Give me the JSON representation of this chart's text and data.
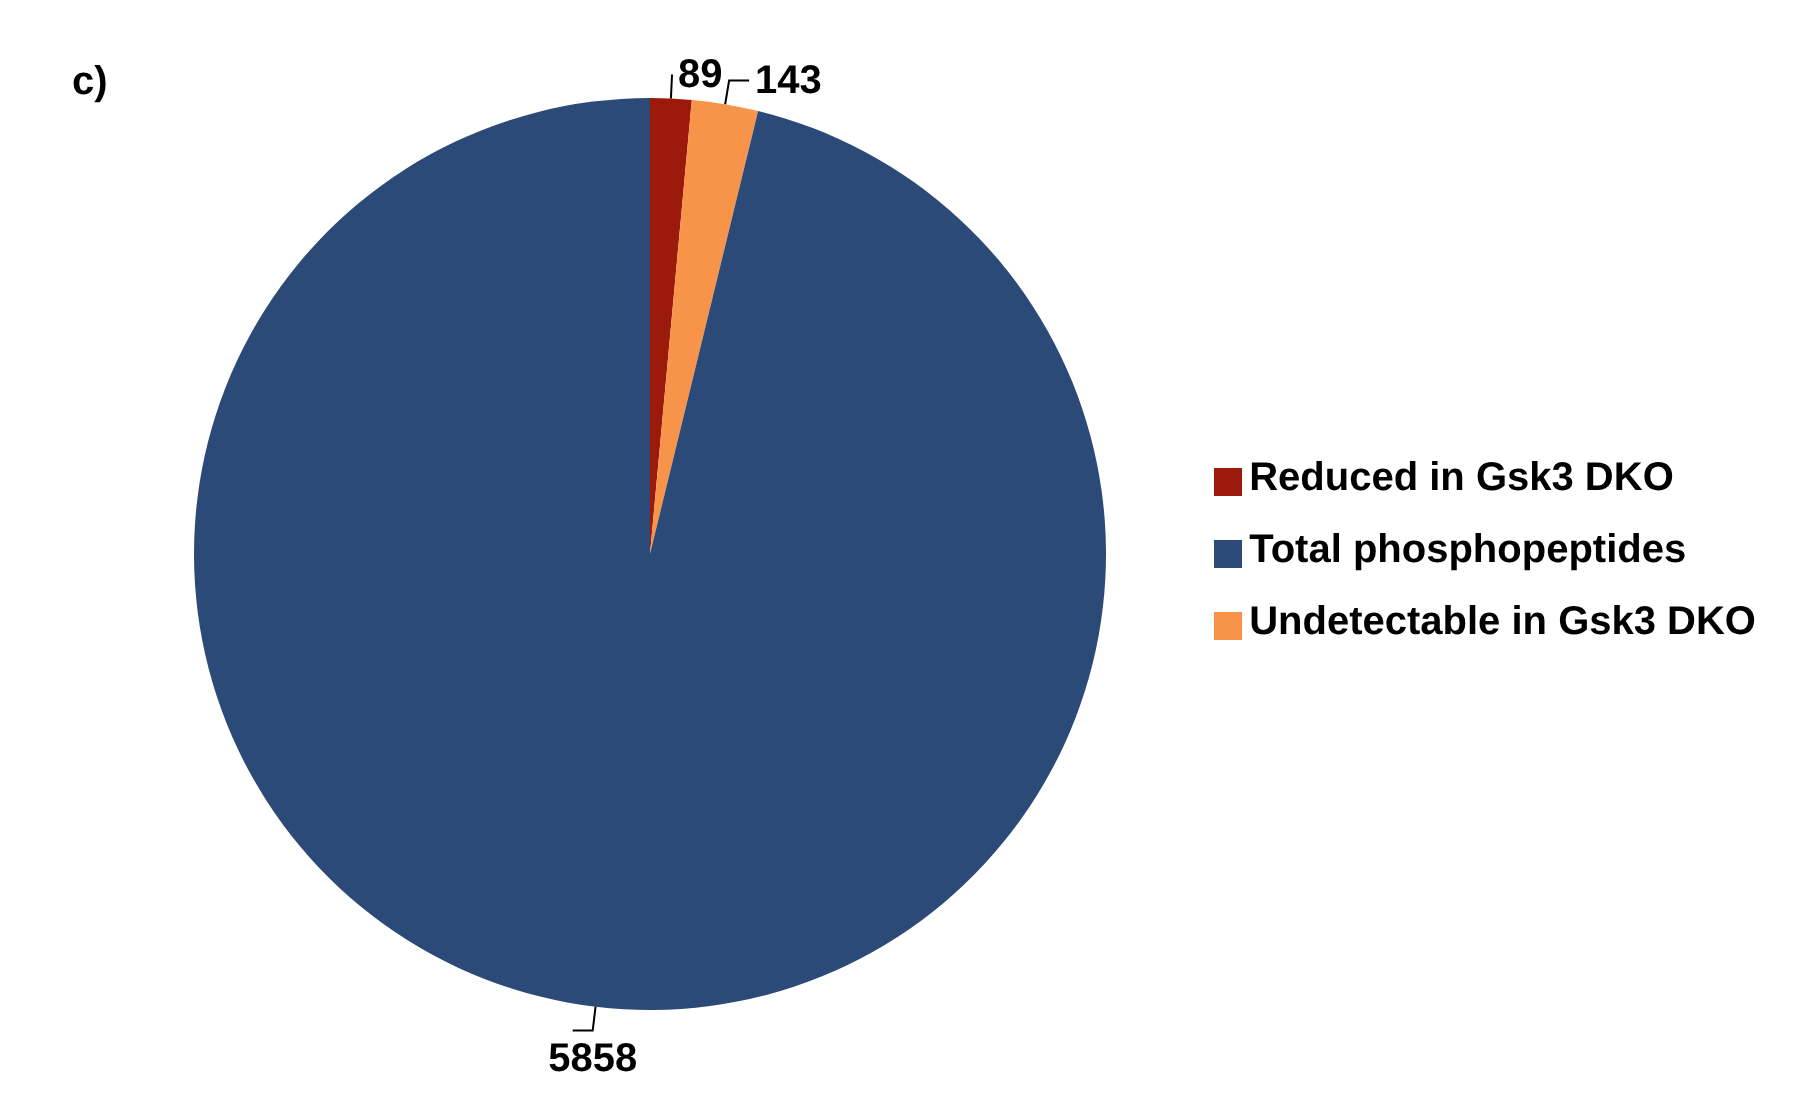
{
  "chart_data": {
    "type": "pie",
    "annotations": [
      "c)"
    ],
    "categories": [
      "Reduced in Gsk3 DKO",
      "Undetectable in Gsk3 DKO",
      "Total phosphopeptides"
    ],
    "values": [
      89,
      143,
      5858
    ],
    "colors": [
      "#9b1a0b",
      "#f7944a",
      "#2b4a78"
    ],
    "data_labels": true,
    "legend": "right"
  }
}
